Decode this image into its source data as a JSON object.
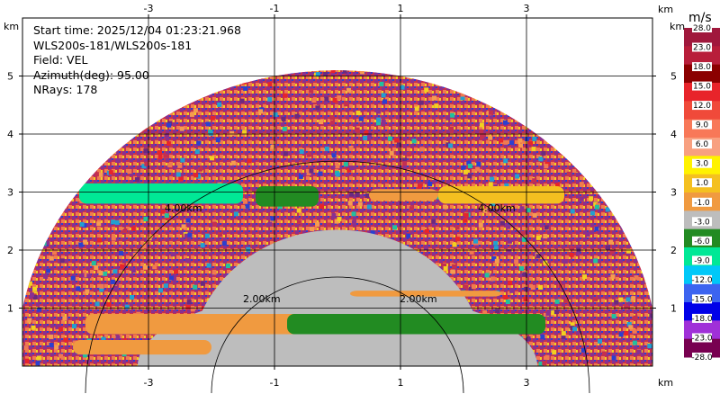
{
  "info": {
    "start_time": "Start time: 2025/12/04 01:23:21.968",
    "instrument": "WLS200s-181/WLS200s-181",
    "field": "Field: VEL",
    "azimuth": "Azimuth(deg): 95.00",
    "nrays": "NRays: 178"
  },
  "axis_unit": "km",
  "colorbar": {
    "unit": "m/s",
    "labels": [
      "28.0",
      "23.0",
      "18.0",
      "15.0",
      "12.0",
      "9.0",
      "6.0",
      "3.0",
      "1.0",
      "-1.0",
      "-3.0",
      "-6.0",
      "-9.0",
      "-12.0",
      "-15.0",
      "-18.0",
      "-23.0",
      "-28.0"
    ],
    "colors": [
      "#a0183c",
      "#b81e3a",
      "#8b0000",
      "#e8242a",
      "#f04a3a",
      "#f87858",
      "#f8a080",
      "#fff200",
      "#f4c020",
      "#f09a40",
      "#bdbdbd",
      "#228b22",
      "#00e896",
      "#00c8f8",
      "#3c64f0",
      "#0000e8",
      "#a030d8",
      "#780050"
    ]
  },
  "chart_data": {
    "type": "heatmap",
    "subtype": "RHI radar scan (radial velocity)",
    "field": "VEL",
    "units": "m/s",
    "azimuth_deg": 95.0,
    "nrays": 178,
    "xlim": [
      -5.0,
      5.0
    ],
    "ylim": [
      0.0,
      6.0
    ],
    "x_ticks": [
      -3,
      -1,
      1,
      3
    ],
    "y_ticks": [
      1,
      2,
      3,
      4,
      5
    ],
    "x_unit": "km",
    "y_unit": "km",
    "max_range_km": 5.1,
    "range_rings_km": [
      2.0,
      4.0
    ],
    "range_ring_labels": [
      "2.00km",
      "4.00km"
    ],
    "colorbar_range": [
      -28.0,
      28.0
    ],
    "grid": true
  }
}
